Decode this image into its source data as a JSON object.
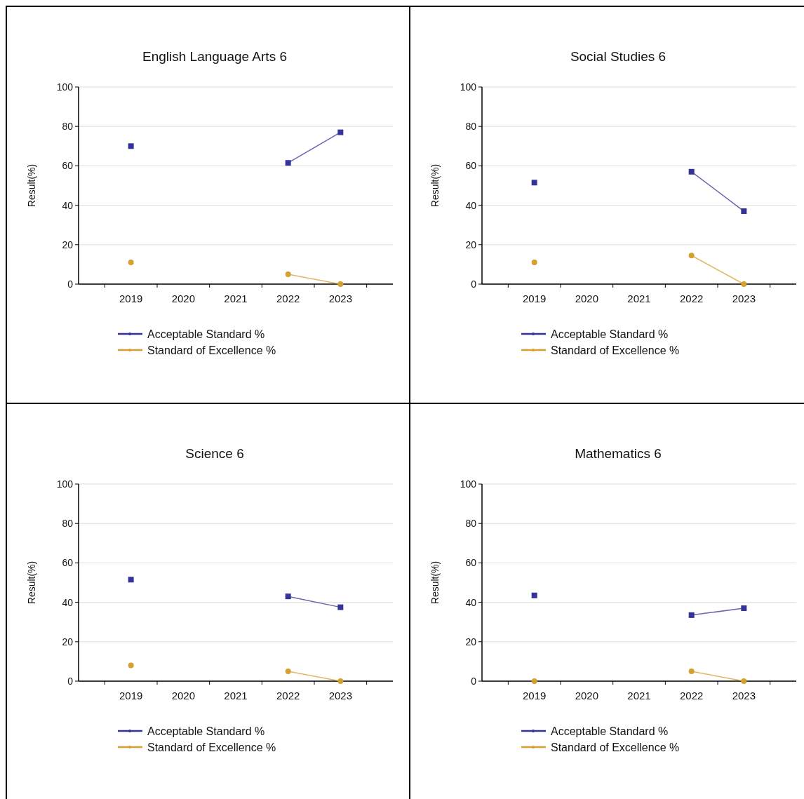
{
  "chart_data": [
    {
      "type": "line",
      "title": "English Language Arts 6",
      "ylabel": "Result(%)",
      "categories": [
        "2019",
        "2020",
        "2021",
        "2022",
        "2023"
      ],
      "ylim": [
        0,
        100
      ],
      "yticks": [
        0,
        20,
        40,
        60,
        80,
        100
      ],
      "grid": "y",
      "legend": "bottom",
      "series": [
        {
          "name": "Acceptable Standard %",
          "color": "#333399",
          "marker": "square",
          "values": [
            70,
            null,
            null,
            61.5,
            77
          ]
        },
        {
          "name": "Standard of Excellence %",
          "color": "#d4a030",
          "marker": "circle",
          "values": [
            11,
            null,
            null,
            5,
            0
          ]
        }
      ]
    },
    {
      "type": "line",
      "title": "Social Studies 6",
      "ylabel": "Result(%)",
      "categories": [
        "2019",
        "2020",
        "2021",
        "2022",
        "2023"
      ],
      "ylim": [
        0,
        100
      ],
      "yticks": [
        0,
        20,
        40,
        60,
        80,
        100
      ],
      "grid": "y",
      "legend": "bottom",
      "series": [
        {
          "name": "Acceptable Standard %",
          "color": "#333399",
          "marker": "square",
          "values": [
            51.5,
            null,
            null,
            57,
            37
          ]
        },
        {
          "name": "Standard of Excellence %",
          "color": "#d4a030",
          "marker": "circle",
          "values": [
            11,
            null,
            null,
            14.5,
            0
          ]
        }
      ]
    },
    {
      "type": "line",
      "title": "Science 6",
      "ylabel": "Result(%)",
      "categories": [
        "2019",
        "2020",
        "2021",
        "2022",
        "2023"
      ],
      "ylim": [
        0,
        100
      ],
      "yticks": [
        0,
        20,
        40,
        60,
        80,
        100
      ],
      "grid": "y",
      "legend": "bottom",
      "series": [
        {
          "name": "Acceptable Standard %",
          "color": "#333399",
          "marker": "square",
          "values": [
            51.5,
            null,
            null,
            43,
            37.5
          ]
        },
        {
          "name": "Standard of Excellence %",
          "color": "#d4a030",
          "marker": "circle",
          "values": [
            8,
            null,
            null,
            5,
            0
          ]
        }
      ]
    },
    {
      "type": "line",
      "title": "Mathematics 6",
      "ylabel": "Result(%)",
      "categories": [
        "2019",
        "2020",
        "2021",
        "2022",
        "2023"
      ],
      "ylim": [
        0,
        100
      ],
      "yticks": [
        0,
        20,
        40,
        60,
        80,
        100
      ],
      "grid": "y",
      "legend": "bottom",
      "series": [
        {
          "name": "Acceptable Standard %",
          "color": "#333399",
          "marker": "square",
          "values": [
            43.5,
            null,
            null,
            33.5,
            37
          ]
        },
        {
          "name": "Standard of Excellence %",
          "color": "#d4a030",
          "marker": "circle",
          "values": [
            0,
            null,
            null,
            5,
            0
          ]
        }
      ]
    }
  ]
}
